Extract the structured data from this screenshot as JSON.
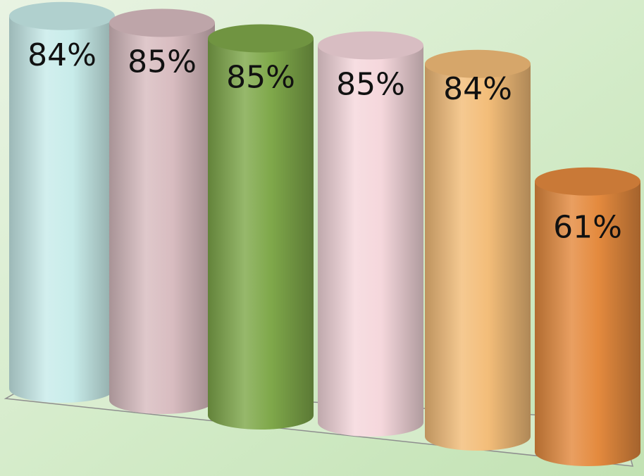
{
  "chart_data": {
    "type": "bar",
    "style": "3d-cylinder",
    "values": [
      84,
      85,
      85,
      85,
      84,
      61
    ],
    "labels": [
      "84%",
      "85%",
      "85%",
      "85%",
      "84%",
      "61%"
    ],
    "colors": [
      "#c8ecea",
      "#d8bcc0",
      "#7fa84a",
      "#f5d7dc",
      "#f3bd79",
      "#e48a3e"
    ],
    "background": "#cfe7c4",
    "grid": false,
    "legend": "none"
  }
}
